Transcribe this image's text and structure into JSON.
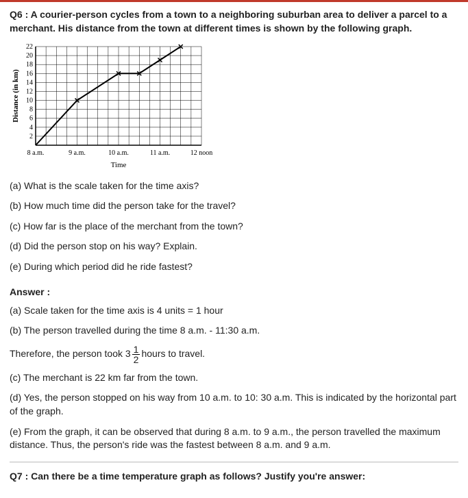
{
  "q6": {
    "number": "Q6 :",
    "prompt": "A courier-person cycles from a town to a neighboring suburban area to deliver a parcel to a merchant. His distance from the town at different times is shown by the following graph.",
    "parts": {
      "a": "(a) What is the scale taken for the time axis?",
      "b": "(b) How much time did the person take for the travel?",
      "c": "(c) How far is the place of the merchant from the town?",
      "d": "(d) Did the person stop on his way? Explain.",
      "e": "(e) During which period did he ride fastest?"
    },
    "answer_label": "Answer :",
    "answers": {
      "a": "(a) Scale taken for the time axis is 4 units = 1 hour",
      "b": "(b) The person travelled during the time 8 a.m. - 11:30 a.m.",
      "b2_pre": "Therefore, the person took 3",
      "b2_frac_num": "1",
      "b2_frac_den": "2",
      "b2_post": "hours to travel.",
      "c": "(c) The merchant is 22 km far from the town.",
      "d": "(d) Yes, the person stopped on his way from 10 a.m. to 10: 30 a.m. This is indicated by the horizontal part of the graph.",
      "e": "(e) From the graph, it can be observed that during 8 a.m. to 9 a.m., the person travelled the maximum distance. Thus, the person's ride was the fastest between 8 a.m. and 9 a.m."
    }
  },
  "chart": {
    "type": "line",
    "ylabel": "Distance (in km)",
    "xlabel": "Time",
    "y_ticks": [
      2,
      4,
      6,
      8,
      10,
      12,
      14,
      16,
      18,
      20,
      22
    ],
    "x_tick_labels": [
      "8 a.m.",
      "9 a.m.",
      "10 a.m.",
      "11 a.m.",
      "12 noon"
    ],
    "x_tick_positions_units": [
      0,
      4,
      8,
      12,
      16
    ],
    "x_units_total": 16,
    "y_max": 22,
    "grid_color": "#000000",
    "line_color": "#000000",
    "background_color": "#ffffff",
    "axis_font_size": 10,
    "label_font_size": 11,
    "marker": "x",
    "data_points": [
      {
        "x_units": 0,
        "y": 0
      },
      {
        "x_units": 4,
        "y": 10
      },
      {
        "x_units": 8,
        "y": 16
      },
      {
        "x_units": 10,
        "y": 16
      },
      {
        "x_units": 12,
        "y": 19
      },
      {
        "x_units": 14,
        "y": 22
      }
    ]
  },
  "q7": {
    "number": "Q7 :",
    "prompt": "Can there be a time temperature graph as follows? Justify you're answer:"
  },
  "accent_color": "#c0392b"
}
